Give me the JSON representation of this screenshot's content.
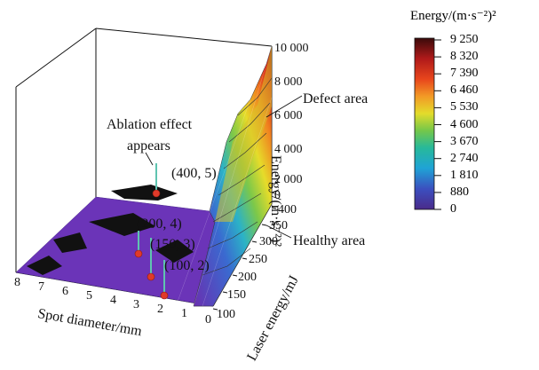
{
  "chart_data": {
    "type": "surface",
    "title": "",
    "xlabel": "Laser energy/mJ",
    "ylabel": "Spot diameter/mm",
    "zlabel": "Energy/(m·s⁻²)²",
    "x_ticks": [
      "100",
      "150",
      "200",
      "250",
      "300",
      "350",
      "400"
    ],
    "y_ticks": [
      "8",
      "7",
      "6",
      "5",
      "4",
      "3",
      "2",
      "1",
      "0"
    ],
    "z_ticks": [
      "0",
      "2 000",
      "4 000",
      "6 000",
      "8 000",
      "10 000"
    ],
    "zlim": [
      0,
      10000
    ],
    "colorbar": {
      "title": "Energy/(m·s⁻²)²",
      "ticks": [
        "9 250",
        "8 320",
        "7 390",
        "6 460",
        "5 530",
        "4 600",
        "3 670",
        "2 740",
        "1 810",
        "880",
        "0"
      ]
    },
    "marked_points": [
      {
        "label": "(400, 5)",
        "laser_energy": 400,
        "spot_diameter": 5
      },
      {
        "label": "(200, 4)",
        "laser_energy": 200,
        "spot_diameter": 4
      },
      {
        "label": "(150, 3)",
        "laser_energy": 150,
        "spot_diameter": 3
      },
      {
        "label": "(100, 2)",
        "laser_energy": 100,
        "spot_diameter": 2
      }
    ],
    "annotations": {
      "ablation": "Ablation effect appears",
      "defect": "Defect area",
      "healthy": "Healthy area"
    }
  }
}
